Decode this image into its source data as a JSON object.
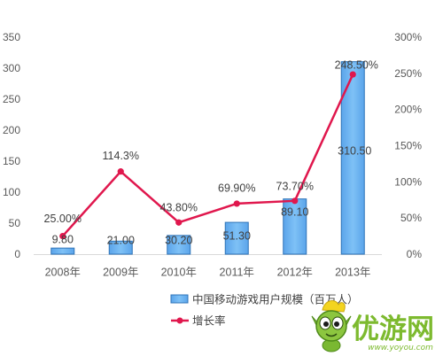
{
  "chart_data": {
    "type": "bar",
    "categories": [
      "2008年",
      "2009年",
      "2010年",
      "2011年",
      "2012年",
      "2013年"
    ],
    "series": [
      {
        "name": "中国移动游戏用户规模（百万人）",
        "type": "bar",
        "axis": "y_left",
        "values": [
          9.8,
          21.0,
          30.2,
          51.3,
          89.1,
          310.5
        ],
        "data_labels": [
          "9.80",
          "21.00",
          "30.20",
          "51.30",
          "89.10",
          "310.50"
        ],
        "color": "#5BA4EA",
        "border_color": "#2F74B8"
      },
      {
        "name": "增长率",
        "type": "line",
        "axis": "y_right",
        "values": [
          25.0,
          114.3,
          43.8,
          69.9,
          73.7,
          248.5
        ],
        "data_labels": [
          "25.00%",
          "114.3%",
          "43.80%",
          "69.90%",
          "73.70%",
          "248.50%"
        ],
        "color": "#E0174D"
      }
    ],
    "y_left": {
      "min": 0,
      "max": 350,
      "ticks": [
        0,
        50,
        100,
        150,
        200,
        250,
        300,
        350
      ],
      "tick_labels": [
        "0",
        "50",
        "100",
        "150",
        "200",
        "250",
        "300",
        "350"
      ]
    },
    "y_right": {
      "min": 0,
      "max": 300,
      "ticks": [
        0,
        50,
        100,
        150,
        200,
        250,
        300
      ],
      "tick_labels": [
        "0%",
        "50%",
        "100%",
        "150%",
        "200%",
        "250%",
        "300%"
      ]
    },
    "grid": false,
    "legend": "bottom"
  },
  "watermark": {
    "logo_text": "优游网",
    "url": "www.yoyou.com",
    "color": "#7DBA2F"
  }
}
